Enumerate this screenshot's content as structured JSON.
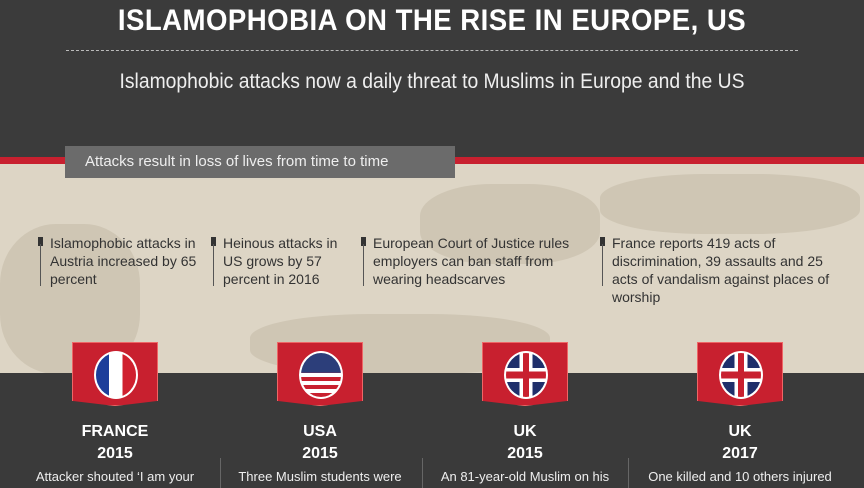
{
  "header": {
    "title": "ISLAMOPHOBIA ON THE RISE IN EUROPE, US",
    "subtitle": "Islamophobic attacks now a daily threat to Muslims in Europe and the US"
  },
  "section_label": "Attacks result in loss of lives from time to time",
  "bullets": [
    "Islamophobic attacks in Austria increased by 65 percent",
    "Heinous attacks in US grows by 57 percent in 2016",
    "European Court of Justice rules employers can ban staff from wearing headscarves",
    "France reports 419 acts of discrimination, 39 assaults and 25 acts of vandalism against places of worship"
  ],
  "events": [
    {
      "country": "FRANCE",
      "year": "2015",
      "text": "Attacker shouted ‘I am your",
      "flag": "france-flag"
    },
    {
      "country": "USA",
      "year": "2015",
      "text": "Three Muslim students were",
      "flag": "usa-flag"
    },
    {
      "country": "UK",
      "year": "2015",
      "text": "An 81-year-old Muslim on his",
      "flag": "uk-flag"
    },
    {
      "country": "UK",
      "year": "2017",
      "text": "One killed and 10 others injured",
      "flag": "uk-flag"
    }
  ],
  "colors": {
    "red": "#c8202f",
    "dark": "#3a3a3a",
    "beige": "#ddd5c5"
  }
}
